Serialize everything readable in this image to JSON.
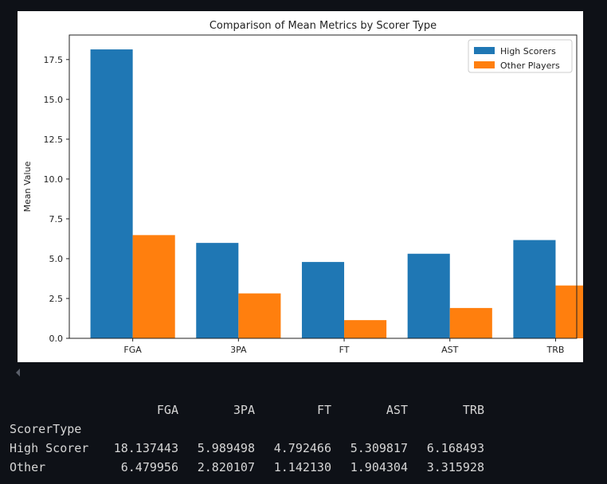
{
  "chart_data": {
    "type": "bar",
    "title": "Comparison of Mean Metrics by Scorer Type",
    "xlabel": "",
    "ylabel": "Mean Value",
    "categories": [
      "FGA",
      "3PA",
      "FT",
      "AST",
      "TRB"
    ],
    "series": [
      {
        "name": "High Scorers",
        "color": "#1f77b4",
        "values": [
          18.137443,
          5.989498,
          4.792466,
          5.309817,
          6.168493
        ]
      },
      {
        "name": "Other Players",
        "color": "#ff7f0e",
        "values": [
          6.479956,
          2.820107,
          1.14213,
          1.904304,
          3.315928
        ]
      }
    ],
    "ylim": [
      0,
      19.04
    ],
    "yticks": [
      "0.0",
      "2.5",
      "5.0",
      "7.5",
      "10.0",
      "12.5",
      "15.0",
      "17.5"
    ],
    "legend": "upper-right",
    "grid": false
  },
  "output_table": {
    "columns": [
      "FGA",
      "3PA",
      "FT",
      "AST",
      "TRB"
    ],
    "index_name": "ScorerType",
    "rows": [
      {
        "label": "High Scorer",
        "values": [
          "18.137443",
          "5.989498",
          "4.792466",
          "5.309817",
          "6.168493"
        ]
      },
      {
        "label": "Other",
        "values": [
          "6.479956",
          "2.820107",
          "1.142130",
          "1.904304",
          "3.315928"
        ]
      }
    ]
  }
}
